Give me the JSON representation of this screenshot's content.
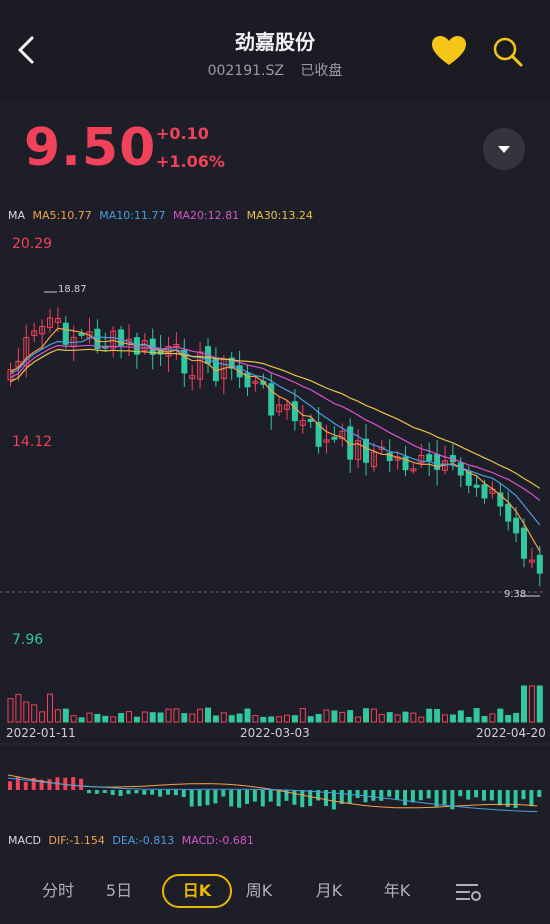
{
  "header": {
    "title": "劲嘉股份",
    "code": "002191.SZ",
    "status": "已收盘"
  },
  "quote": {
    "price": "9.50",
    "change": "+0.10",
    "change_pct": "+1.06%"
  },
  "ma_legend": {
    "label": "MA",
    "ma5": "MA5:10.77",
    "ma10": "MA10:11.77",
    "ma20": "MA20:12.81",
    "ma30": "MA30:13.24"
  },
  "axis": {
    "high": "20.29",
    "mid": "14.12",
    "low": "7.96",
    "peak_marker": "18.87",
    "low_marker": "9.38"
  },
  "dates": [
    "2022-01-11",
    "2022-03-03",
    "2022-04-20"
  ],
  "macd_legend": {
    "label": "MACD",
    "dif": "DIF:-1.154",
    "dea": "DEA:-0.813",
    "macd": "MACD:-0.681"
  },
  "tabs": [
    "分时",
    "5日",
    "日K",
    "周K",
    "月K",
    "年K"
  ],
  "active_tab": "日K",
  "colors": {
    "up": "#f0425a",
    "down": "#31c7a0",
    "ma5": "#f2a24b",
    "ma10": "#4a9fe0",
    "ma20": "#d456c8",
    "ma30": "#e8c24a",
    "accent": "#e8b800"
  },
  "icons": {
    "back": "chevron-left-icon",
    "favorite": "heart-icon",
    "search": "search-icon",
    "dropdown": "triangle-down-icon",
    "settings": "chart-settings-icon"
  }
}
